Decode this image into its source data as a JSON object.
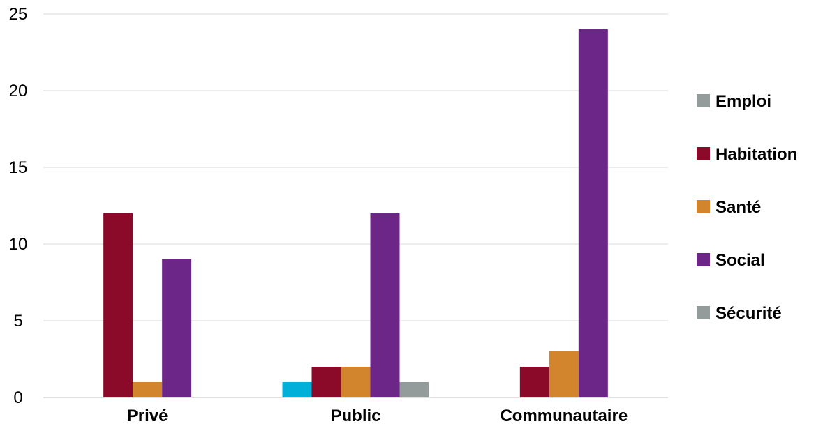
{
  "chart_data": {
    "type": "bar",
    "categories": [
      "Privé",
      "Public",
      "Communautaire"
    ],
    "series": [
      {
        "name": "Emploi",
        "color": "#00b0d8",
        "legend_color": "#939c9a",
        "values": [
          0,
          1,
          0
        ]
      },
      {
        "name": "Habitation",
        "color": "#8b0a2a",
        "values": [
          12,
          2,
          2
        ]
      },
      {
        "name": "Santé",
        "color": "#d3852e",
        "values": [
          1,
          2,
          3
        ]
      },
      {
        "name": "Social",
        "color": "#6b2688",
        "values": [
          9,
          12,
          24
        ]
      },
      {
        "name": "Sécurité",
        "color": "#939c9a",
        "values": [
          0,
          1,
          0
        ]
      }
    ],
    "ylim": [
      0,
      25
    ],
    "yticks": [
      "0",
      "5",
      "10",
      "15",
      "20",
      "25"
    ],
    "grid": true,
    "legend_position": "right"
  }
}
